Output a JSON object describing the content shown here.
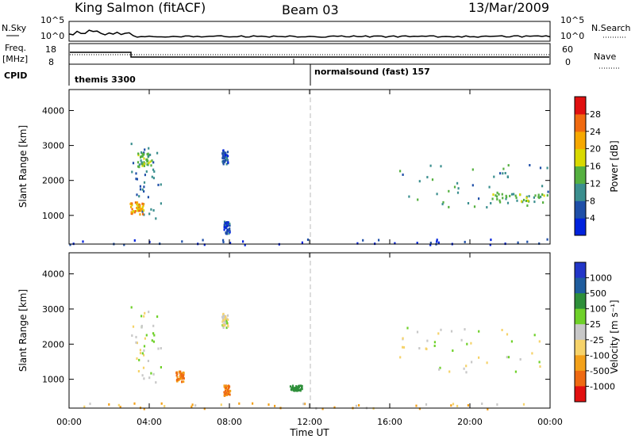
{
  "header": {
    "station": "King Salmon (fitACF)",
    "beam": "Beam 03",
    "date": "13/Mar/2009"
  },
  "top_panels": {
    "nsky_label": "N.Sky",
    "nsky_ticks": [
      "10^5",
      "10^0"
    ],
    "nsearch_label": "N.Search",
    "nsearch_ticks": [
      "10^5",
      "10^0"
    ],
    "freq_label": "Freq.",
    "freq_unit": "[MHz]",
    "freq_ticks": [
      "18",
      "8"
    ],
    "nave_label": "Nave",
    "nave_ticks": [
      "60",
      "0"
    ],
    "cpid_label": "CPID",
    "cpid_segments": [
      {
        "name": "themis 3300",
        "start_h": 0,
        "end_h": 12
      },
      {
        "name": "normalsound (fast) 157",
        "start_h": 12,
        "end_h": 24
      }
    ]
  },
  "colors": {
    "power_scale": [
      "#0022dd",
      "#1f4fa8",
      "#3b8f8f",
      "#55b040",
      "#d9d900",
      "#f6a800",
      "#f06a10",
      "#e01010"
    ],
    "velocity_scale": [
      "#2236c8",
      "#1f5d9e",
      "#2e8f3a",
      "#6fd12a",
      "#c8c8c8",
      "#f6d36a",
      "#f3a11a",
      "#ef6a12",
      "#e21010"
    ]
  },
  "chart_data": [
    {
      "type": "heatmap",
      "name": "power",
      "ylabel": "Slant Range [km]",
      "xlabel": "Time UT",
      "xlim": [
        0,
        24
      ],
      "ylim": [
        180,
        4600
      ],
      "x_ticks": [
        "00:00",
        "04:00",
        "08:00",
        "12:00",
        "16:00",
        "20:00",
        "00:00"
      ],
      "y_ticks": [
        1000,
        2000,
        3000,
        4000
      ],
      "colorbar": {
        "label": "Power [dB]",
        "ticks": [
          "4",
          "8",
          "12",
          "16",
          "20",
          "24",
          "28"
        ],
        "range": [
          0,
          30
        ]
      },
      "echo_regions": [
        {
          "t0": 3.0,
          "t1": 4.6,
          "r0": 900,
          "r1": 3300,
          "power": 8
        },
        {
          "t0": 3.0,
          "t1": 3.7,
          "r0": 1050,
          "r1": 1400,
          "power": 22
        },
        {
          "t0": 3.4,
          "t1": 4.1,
          "r0": 2400,
          "r1": 2800,
          "power": 14
        },
        {
          "t0": 7.6,
          "t1": 7.9,
          "r0": 2500,
          "r1": 2900,
          "power": 6
        },
        {
          "t0": 7.7,
          "t1": 8.0,
          "r0": 500,
          "r1": 850,
          "power": 6
        },
        {
          "t0": 16.4,
          "t1": 24.0,
          "r0": 1200,
          "r1": 2500,
          "power": 10
        },
        {
          "t0": 21.0,
          "t1": 24.0,
          "r0": 1400,
          "r1": 1650,
          "power": 14
        },
        {
          "t0": 0.0,
          "t1": 24.0,
          "r0": 180,
          "r1": 350,
          "power": 4
        }
      ]
    },
    {
      "type": "heatmap",
      "name": "velocity",
      "ylabel": "Slant Range [km]",
      "xlabel": "Time UT",
      "xlim": [
        0,
        24
      ],
      "ylim": [
        180,
        4600
      ],
      "x_ticks": [
        "00:00",
        "04:00",
        "08:00",
        "12:00",
        "16:00",
        "20:00",
        "00:00"
      ],
      "y_ticks": [
        1000,
        2000,
        3000,
        4000
      ],
      "colorbar": {
        "label": "Velocity [m s⁻¹]",
        "ticks": [
          "1000",
          "500",
          "100",
          "25",
          "-25",
          "-100",
          "-500",
          "-1000"
        ]
      },
      "echo_regions": [
        {
          "t0": 3.0,
          "t1": 4.6,
          "r0": 900,
          "r1": 3300,
          "velocity": 0
        },
        {
          "t0": 5.3,
          "t1": 5.7,
          "r0": 950,
          "r1": 1250,
          "velocity": -300
        },
        {
          "t0": 7.7,
          "t1": 8.0,
          "r0": 550,
          "r1": 850,
          "velocity": -300
        },
        {
          "t0": 7.6,
          "t1": 7.9,
          "r0": 2500,
          "r1": 2900,
          "velocity": 0
        },
        {
          "t0": 16.4,
          "t1": 24.0,
          "r0": 1200,
          "r1": 2500,
          "velocity": 0
        },
        {
          "t0": 11.0,
          "t1": 11.6,
          "r0": 700,
          "r1": 850,
          "velocity": 150
        },
        {
          "t0": 0.0,
          "t1": 24.0,
          "r0": 180,
          "r1": 350,
          "velocity": -50
        }
      ]
    }
  ]
}
